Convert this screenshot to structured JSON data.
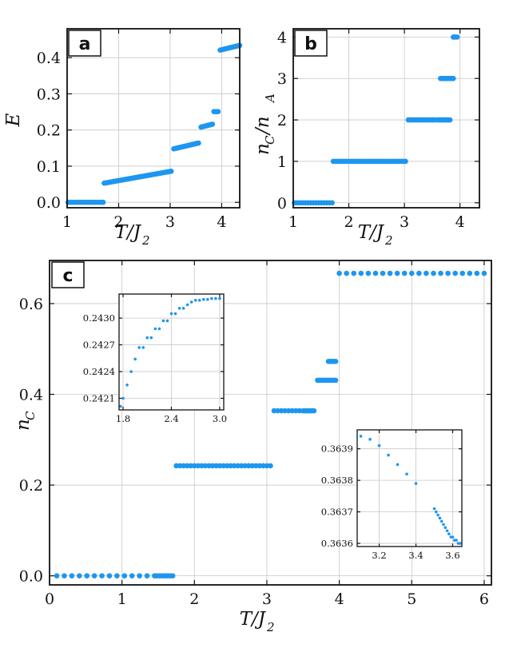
{
  "figure": {
    "accent_color": "#1e96f0"
  },
  "chart_data": [
    {
      "id": "a",
      "panel_label": "a",
      "type": "scatter",
      "xlabel": "T/J",
      "xlabel_sub": "2",
      "ylabel": "E",
      "xlim": [
        1,
        4.35
      ],
      "ylim": [
        -0.015,
        0.48
      ],
      "xticks": [
        1,
        2,
        3,
        4
      ],
      "xtick_labels": [
        "1",
        "2",
        "3",
        "4"
      ],
      "yticks": [
        0.0,
        0.1,
        0.2,
        0.3,
        0.4
      ],
      "ytick_labels": [
        "0.0",
        "0.1",
        "0.2",
        "0.3",
        "0.4"
      ],
      "grid": true,
      "segments": [
        {
          "x0": 1.02,
          "x1": 1.7,
          "y0": 0.0,
          "y1": 0.0,
          "step": 0.05
        },
        {
          "x0": 1.72,
          "x1": 3.02,
          "y0": 0.053,
          "y1": 0.086,
          "step": 0.025
        },
        {
          "x0": 3.07,
          "x1": 3.55,
          "y0": 0.148,
          "y1": 0.164,
          "step": 0.02
        },
        {
          "x0": 3.6,
          "x1": 3.82,
          "y0": 0.208,
          "y1": 0.216,
          "step": 0.02
        },
        {
          "x0": 3.85,
          "x1": 3.93,
          "y0": 0.251,
          "y1": 0.251,
          "step": 0.02
        },
        {
          "x0": 3.97,
          "x1": 4.35,
          "y0": 0.421,
          "y1": 0.434,
          "step": 0.03
        }
      ]
    },
    {
      "id": "b",
      "panel_label": "b",
      "type": "scatter",
      "xlabel": "T/J",
      "xlabel_sub": "2",
      "ylabel": "n",
      "ylabel_sub1": "C",
      "ylabel_mid": "/n",
      "ylabel_sub2": "A",
      "xlim": [
        1,
        4.35
      ],
      "ylim": [
        -0.12,
        4.2
      ],
      "xticks": [
        1,
        2,
        3,
        4
      ],
      "xtick_labels": [
        "1",
        "2",
        "3",
        "4"
      ],
      "yticks": [
        0,
        1,
        2,
        3,
        4
      ],
      "ytick_labels": [
        "0",
        "1",
        "2",
        "3",
        "4"
      ],
      "grid": true,
      "segments": [
        {
          "x0": 1.02,
          "x1": 1.7,
          "y0": 0,
          "y1": 0,
          "step": 0.05
        },
        {
          "x0": 1.72,
          "x1": 3.02,
          "y0": 1,
          "y1": 1,
          "step": 0.04
        },
        {
          "x0": 3.07,
          "x1": 3.55,
          "y0": 2,
          "y1": 2,
          "step": 0.03
        },
        {
          "x0": 3.6,
          "x1": 3.82,
          "y0": 2,
          "y1": 2,
          "step": 0.02
        },
        {
          "x0": 3.65,
          "x1": 3.88,
          "y0": 3,
          "y1": 3,
          "step": 0.02
        },
        {
          "x0": 3.88,
          "x1": 3.95,
          "y0": 4,
          "y1": 4,
          "step": 0.02
        }
      ]
    },
    {
      "id": "c",
      "panel_label": "c",
      "type": "scatter",
      "xlabel": "T/J",
      "xlabel_sub": "2",
      "ylabel": "n",
      "ylabel_sub1": "C",
      "xlim": [
        0,
        6.1
      ],
      "ylim": [
        -0.02,
        0.695
      ],
      "xticks": [
        0,
        1,
        2,
        3,
        4,
        5,
        6
      ],
      "xtick_labels": [
        "0",
        "1",
        "2",
        "3",
        "4",
        "5",
        "6"
      ],
      "yticks": [
        0.0,
        0.2,
        0.4,
        0.6
      ],
      "ytick_labels": [
        "0.0",
        "0.2",
        "0.4",
        "0.6"
      ],
      "grid": true,
      "segments": [
        {
          "x0": 0.1,
          "x1": 1.45,
          "y0": 0.0,
          "y1": 0.0,
          "step": 0.1
        },
        {
          "x0": 1.45,
          "x1": 1.7,
          "y0": 0.0,
          "y1": 0.0,
          "step": 0.035
        },
        {
          "x0": 1.75,
          "x1": 3.05,
          "y0": 0.2425,
          "y1": 0.2425,
          "step": 0.05
        },
        {
          "x0": 3.1,
          "x1": 3.45,
          "y0": 0.3638,
          "y1": 0.3638,
          "step": 0.05
        },
        {
          "x0": 3.5,
          "x1": 3.65,
          "y0": 0.3637,
          "y1": 0.3637,
          "step": 0.025
        },
        {
          "x0": 3.7,
          "x1": 3.95,
          "y0": 0.431,
          "y1": 0.431,
          "step": 0.025
        },
        {
          "x0": 3.85,
          "x1": 3.95,
          "y0": 0.4725,
          "y1": 0.4725,
          "step": 0.025
        },
        {
          "x0": 4.0,
          "x1": 6.0,
          "y0": 0.6667,
          "y1": 0.6667,
          "step": 0.1
        }
      ]
    },
    {
      "id": "c-inset-1",
      "type": "scatter",
      "xlim": [
        1.75,
        3.05
      ],
      "ylim": [
        0.24197,
        0.24327
      ],
      "xticks": [
        1.8,
        2.4,
        3.0
      ],
      "xtick_labels": [
        "1.8",
        "2.4",
        "3.0"
      ],
      "yticks": [
        0.2421,
        0.2424,
        0.2427,
        0.243
      ],
      "ytick_labels": [
        "0.2421",
        "0.2424",
        "0.2427",
        "0.2430"
      ],
      "grid": true,
      "x": [
        1.77,
        1.8,
        1.85,
        1.9,
        1.95,
        2.0,
        2.05,
        2.1,
        2.15,
        2.2,
        2.25,
        2.3,
        2.35,
        2.4,
        2.45,
        2.5,
        2.55,
        2.6,
        2.65,
        2.7,
        2.75,
        2.8,
        2.85,
        2.9,
        2.95,
        3.0
      ],
      "y": [
        0.24201,
        0.2421,
        0.24225,
        0.2424,
        0.24254,
        0.24267,
        0.24267,
        0.24278,
        0.24278,
        0.24288,
        0.24288,
        0.24297,
        0.24297,
        0.24305,
        0.24305,
        0.24311,
        0.24311,
        0.24315,
        0.24318,
        0.2432,
        0.2432,
        0.24321,
        0.24321,
        0.24322,
        0.24322,
        0.24322
      ]
    },
    {
      "id": "c-inset-2",
      "type": "scatter",
      "xlim": [
        3.08,
        3.65
      ],
      "ylim": [
        0.36359,
        0.36396
      ],
      "xticks": [
        3.2,
        3.4,
        3.6
      ],
      "xtick_labels": [
        "3.2",
        "3.4",
        "3.6"
      ],
      "yticks": [
        0.3636,
        0.3637,
        0.3638,
        0.3639
      ],
      "ytick_labels": [
        "0.3636",
        "0.3637",
        "0.3638",
        "0.3639"
      ],
      "grid": true,
      "x": [
        3.1,
        3.15,
        3.2,
        3.25,
        3.3,
        3.35,
        3.4,
        3.5,
        3.51,
        3.52,
        3.53,
        3.54,
        3.55,
        3.56,
        3.57,
        3.58,
        3.59,
        3.6,
        3.61,
        3.62,
        3.63,
        3.64
      ],
      "y": [
        0.36394,
        0.36393,
        0.36391,
        0.36388,
        0.36385,
        0.36382,
        0.36379,
        0.36371,
        0.3637,
        0.36369,
        0.36368,
        0.36367,
        0.36366,
        0.36365,
        0.36364,
        0.36363,
        0.36362,
        0.36362,
        0.36361,
        0.36361,
        0.3636,
        0.3636
      ]
    }
  ]
}
